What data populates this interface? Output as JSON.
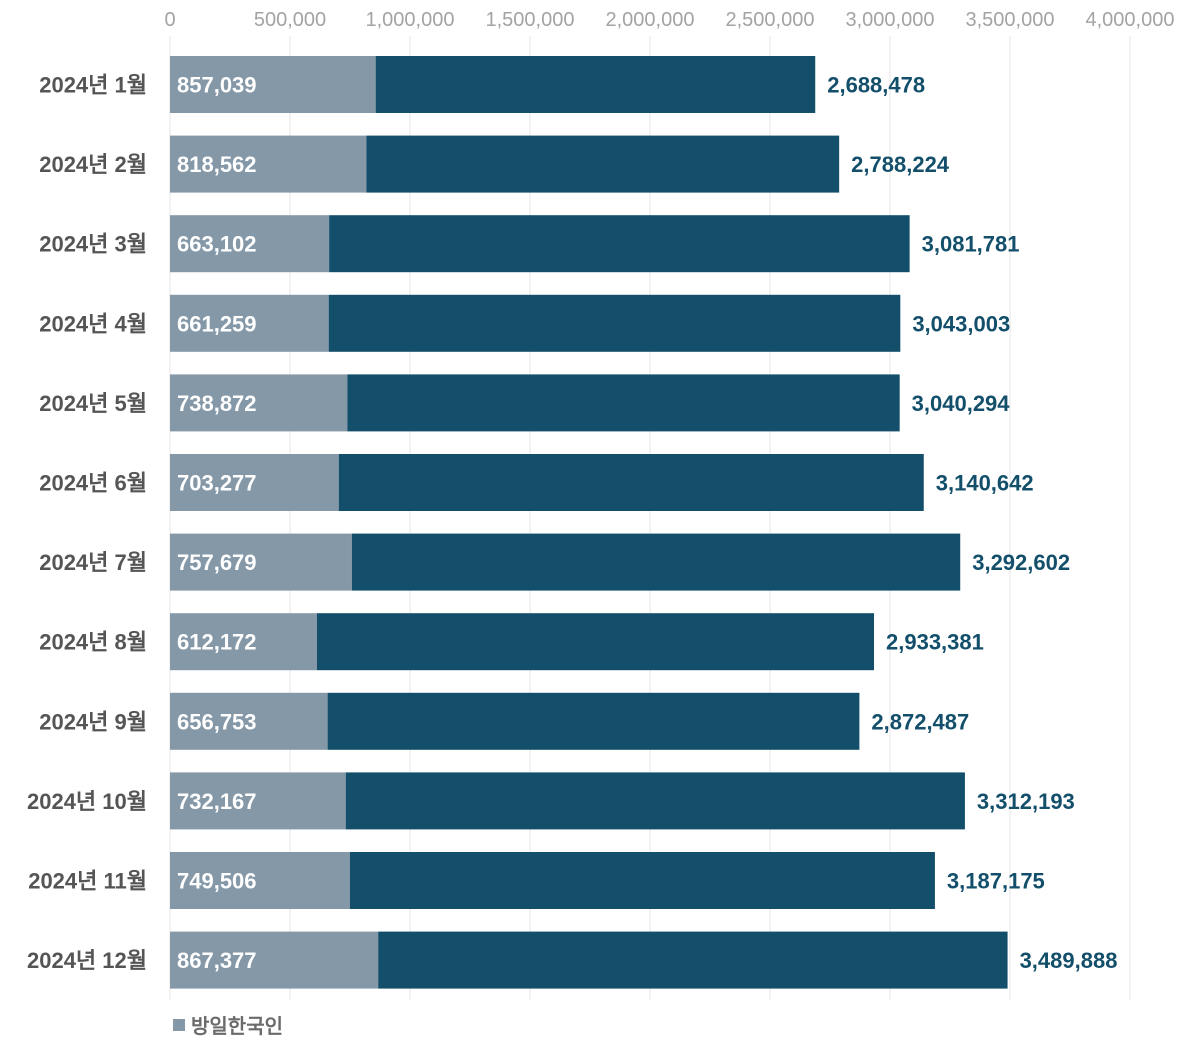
{
  "colors": {
    "korean_visitors": "#8598a8",
    "total": "#134f6b",
    "grid": "#e6e6e6",
    "axis_text": "#a3a3a3",
    "category_text": "#555555",
    "total_text": "#134f6b",
    "legend_text": "#6b6b6b"
  },
  "chart_data": {
    "type": "bar",
    "orientation": "horizontal",
    "title": "",
    "xlabel": "",
    "ylabel": "",
    "xlim": [
      0,
      4000000
    ],
    "x_ticks": [
      0,
      500000,
      1000000,
      1500000,
      2000000,
      2500000,
      3000000,
      3500000,
      4000000
    ],
    "x_tick_labels": [
      "0",
      "500,000",
      "1,000,000",
      "1,500,000",
      "2,000,000",
      "2,500,000",
      "3,000,000",
      "3,500,000",
      "4,000,000"
    ],
    "grid": true,
    "legend_position": "bottom-left",
    "categories": [
      "2024년 1월",
      "2024년 2월",
      "2024년 3월",
      "2024년 4월",
      "2024년 5월",
      "2024년 6월",
      "2024년 7월",
      "2024년 8월",
      "2024년 9월",
      "2024년 10월",
      "2024년 11월",
      "2024년 12월"
    ],
    "series": [
      {
        "name": "방일한국인",
        "values": [
          857039,
          818562,
          663102,
          661259,
          738872,
          703277,
          757679,
          612172,
          656753,
          732167,
          749506,
          867377
        ],
        "labels": [
          "857,039",
          "818,562",
          "663,102",
          "661,259",
          "738,872",
          "703,277",
          "757,679",
          "612,172",
          "656,753",
          "732,167",
          "749,506",
          "867,377"
        ]
      },
      {
        "name": "total",
        "values": [
          2688478,
          2788224,
          3081781,
          3043003,
          3040294,
          3140642,
          3292602,
          2933381,
          2872487,
          3312193,
          3187175,
          3489888
        ],
        "labels": [
          "2,688,478",
          "2,788,224",
          "3,081,781",
          "3,043,003",
          "3,040,294",
          "3,140,642",
          "3,292,602",
          "2,933,381",
          "2,872,487",
          "3,312,193",
          "3,187,175",
          "3,489,888"
        ]
      }
    ],
    "legend": [
      {
        "label": "방일한국인",
        "color": "#8598a8"
      }
    ]
  }
}
